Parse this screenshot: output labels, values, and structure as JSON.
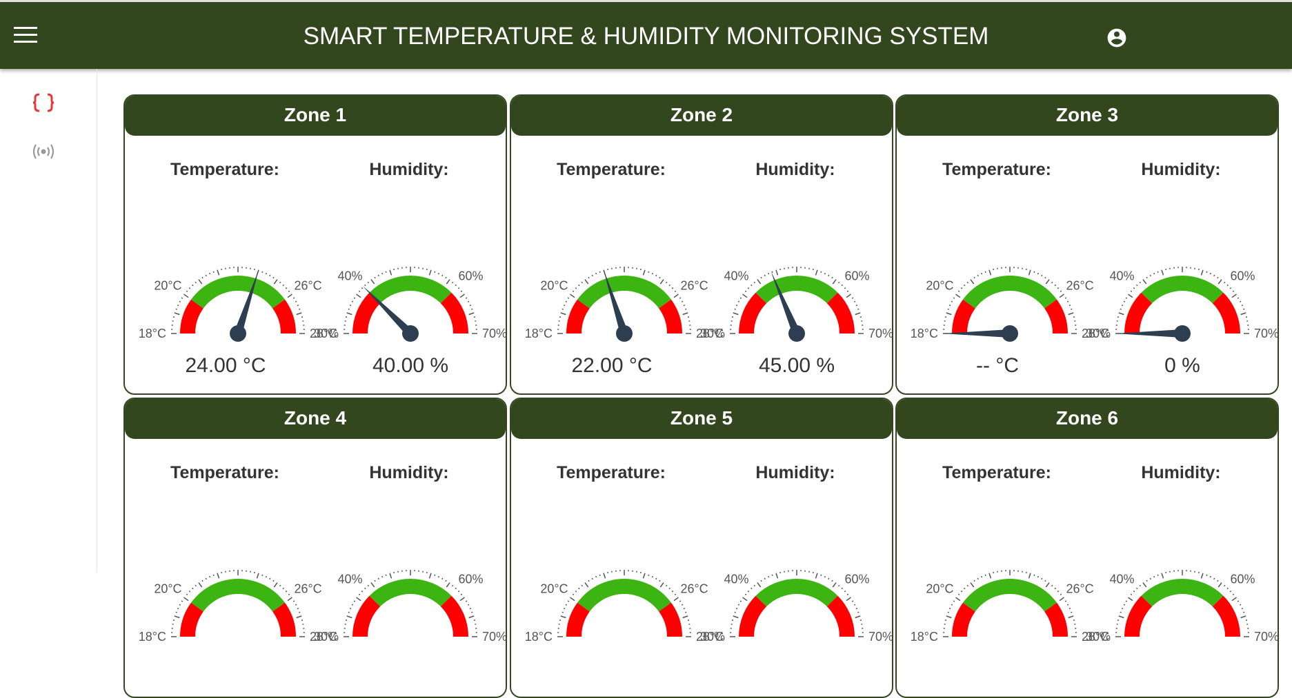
{
  "header": {
    "title": "SMART TEMPERATURE & HUMIDITY MONITORING SYSTEM"
  },
  "gauges": {
    "temperature": {
      "range": [
        18,
        28
      ],
      "green": [
        20,
        26
      ],
      "green_color": "#3cb412",
      "red_color": "#ff0000",
      "ticks": [
        {
          "value": 18,
          "label": "18°C"
        },
        {
          "value": 20,
          "label": "20°C"
        },
        {
          "value": 26,
          "label": "26°C"
        },
        {
          "value": 28,
          "label": "28°C"
        }
      ]
    },
    "humidity": {
      "range": [
        30,
        70
      ],
      "green": [
        40,
        60
      ],
      "green_color": "#3cb412",
      "red_color": "#ff0000",
      "ticks": [
        {
          "value": 30,
          "label": "30%"
        },
        {
          "value": 40,
          "label": "40%"
        },
        {
          "value": 60,
          "label": "60%"
        },
        {
          "value": 70,
          "label": "70%"
        }
      ]
    }
  },
  "zones": [
    {
      "name": "Zone 1",
      "temperature_label": "Temperature:",
      "humidity_label": "Humidity:",
      "temperature": {
        "value": 24,
        "label": "24.00 °C"
      },
      "humidity": {
        "value": 40,
        "label": "40.00 %"
      }
    },
    {
      "name": "Zone 2",
      "temperature_label": "Temperature:",
      "humidity_label": "Humidity:",
      "temperature": {
        "value": 22,
        "label": "22.00 °C"
      },
      "humidity": {
        "value": 45,
        "label": "45.00 %"
      }
    },
    {
      "name": "Zone 3",
      "temperature_label": "Temperature:",
      "humidity_label": "Humidity:",
      "temperature": {
        "value": null,
        "label": "-- °C"
      },
      "humidity": {
        "value": 0,
        "label": "0 %"
      }
    },
    {
      "name": "Zone 4",
      "temperature_label": "Temperature:",
      "humidity_label": "Humidity:"
    },
    {
      "name": "Zone 5",
      "temperature_label": "Temperature:",
      "humidity_label": "Humidity:"
    },
    {
      "name": "Zone 6",
      "temperature_label": "Temperature:",
      "humidity_label": "Humidity:"
    }
  ]
}
